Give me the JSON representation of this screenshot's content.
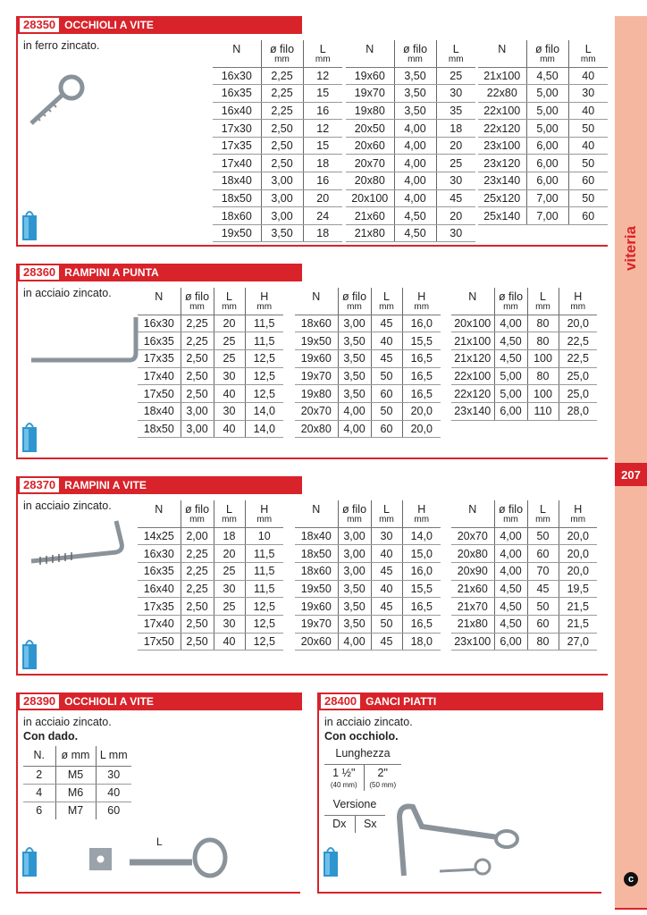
{
  "sidebar": {
    "category": "viteria",
    "page_number": "207",
    "colors": {
      "accent": "#d8232a",
      "sidebar": "#f6b7a0"
    }
  },
  "sections": [
    {
      "code": "28350",
      "title": "OCCHIOLI A VITE",
      "desc": "in ferro zincato.",
      "groups": [
        {
          "headers": [
            {
              "t": "N",
              "u": ""
            },
            {
              "t": "ø filo",
              "u": "mm"
            },
            {
              "t": "L",
              "u": "mm"
            }
          ],
          "rows": [
            [
              "16x30",
              "2,25",
              "12"
            ],
            [
              "16x35",
              "2,25",
              "15"
            ],
            [
              "16x40",
              "2,25",
              "16"
            ],
            [
              "17x30",
              "2,50",
              "12"
            ],
            [
              "17x35",
              "2,50",
              "15"
            ],
            [
              "17x40",
              "2,50",
              "18"
            ],
            [
              "18x40",
              "3,00",
              "16"
            ],
            [
              "18x50",
              "3,00",
              "20"
            ],
            [
              "18x60",
              "3,00",
              "24"
            ],
            [
              "19x50",
              "3,50",
              "18"
            ]
          ]
        },
        {
          "headers": [
            {
              "t": "N",
              "u": ""
            },
            {
              "t": "ø filo",
              "u": "mm"
            },
            {
              "t": "L",
              "u": "mm"
            }
          ],
          "rows": [
            [
              "19x60",
              "3,50",
              "25"
            ],
            [
              "19x70",
              "3,50",
              "30"
            ],
            [
              "19x80",
              "3,50",
              "35"
            ],
            [
              "20x50",
              "4,00",
              "18"
            ],
            [
              "20x60",
              "4,00",
              "20"
            ],
            [
              "20x70",
              "4,00",
              "25"
            ],
            [
              "20x80",
              "4,00",
              "30"
            ],
            [
              "20x100",
              "4,00",
              "45"
            ],
            [
              "21x60",
              "4,50",
              "20"
            ],
            [
              "21x80",
              "4,50",
              "30"
            ]
          ]
        },
        {
          "headers": [
            {
              "t": "N",
              "u": ""
            },
            {
              "t": "ø filo",
              "u": "mm"
            },
            {
              "t": "L",
              "u": "mm"
            }
          ],
          "rows": [
            [
              "21x100",
              "4,50",
              "40"
            ],
            [
              "22x80",
              "5,00",
              "30"
            ],
            [
              "22x100",
              "5,00",
              "40"
            ],
            [
              "22x120",
              "5,00",
              "50"
            ],
            [
              "23x100",
              "6,00",
              "40"
            ],
            [
              "23x120",
              "6,00",
              "50"
            ],
            [
              "23x140",
              "6,00",
              "60"
            ],
            [
              "25x120",
              "7,00",
              "50"
            ],
            [
              "25x140",
              "7,00",
              "60"
            ]
          ]
        }
      ]
    },
    {
      "code": "28360",
      "title": "RAMPINI A PUNTA",
      "desc": "in acciaio zincato.",
      "groups": [
        {
          "headers": [
            {
              "t": "N",
              "u": ""
            },
            {
              "t": "ø filo",
              "u": "mm"
            },
            {
              "t": "L",
              "u": "mm"
            },
            {
              "t": "H",
              "u": "mm"
            }
          ],
          "rows": [
            [
              "16x30",
              "2,25",
              "20",
              "11,5"
            ],
            [
              "16x35",
              "2,25",
              "25",
              "11,5"
            ],
            [
              "17x35",
              "2,50",
              "25",
              "12,5"
            ],
            [
              "17x40",
              "2,50",
              "30",
              "12,5"
            ],
            [
              "17x50",
              "2,50",
              "40",
              "12,5"
            ],
            [
              "18x40",
              "3,00",
              "30",
              "14,0"
            ],
            [
              "18x50",
              "3,00",
              "40",
              "14,0"
            ]
          ]
        },
        {
          "headers": [
            {
              "t": "N",
              "u": ""
            },
            {
              "t": "ø filo",
              "u": "mm"
            },
            {
              "t": "L",
              "u": "mm"
            },
            {
              "t": "H",
              "u": "mm"
            }
          ],
          "rows": [
            [
              "18x60",
              "3,00",
              "45",
              "16,0"
            ],
            [
              "19x50",
              "3,50",
              "40",
              "15,5"
            ],
            [
              "19x60",
              "3,50",
              "45",
              "16,5"
            ],
            [
              "19x70",
              "3,50",
              "50",
              "16,5"
            ],
            [
              "19x80",
              "3,50",
              "60",
              "16,5"
            ],
            [
              "20x70",
              "4,00",
              "50",
              "20,0"
            ],
            [
              "20x80",
              "4,00",
              "60",
              "20,0"
            ]
          ]
        },
        {
          "headers": [
            {
              "t": "N",
              "u": ""
            },
            {
              "t": "ø filo",
              "u": "mm"
            },
            {
              "t": "L",
              "u": "mm"
            },
            {
              "t": "H",
              "u": "mm"
            }
          ],
          "rows": [
            [
              "20x100",
              "4,00",
              "80",
              "20,0"
            ],
            [
              "21x100",
              "4,50",
              "80",
              "22,5"
            ],
            [
              "21x120",
              "4,50",
              "100",
              "22,5"
            ],
            [
              "22x100",
              "5,00",
              "80",
              "25,0"
            ],
            [
              "22x120",
              "5,00",
              "100",
              "25,0"
            ],
            [
              "23x140",
              "6,00",
              "110",
              "28,0"
            ]
          ]
        }
      ]
    },
    {
      "code": "28370",
      "title": "RAMPINI A VITE",
      "desc": "in acciaio zincato.",
      "groups": [
        {
          "headers": [
            {
              "t": "N",
              "u": ""
            },
            {
              "t": "ø filo",
              "u": "mm"
            },
            {
              "t": "L",
              "u": "mm"
            },
            {
              "t": "H",
              "u": "mm"
            }
          ],
          "rows": [
            [
              "14x25",
              "2,00",
              "18",
              "10"
            ],
            [
              "16x30",
              "2,25",
              "20",
              "11,5"
            ],
            [
              "16x35",
              "2,25",
              "25",
              "11,5"
            ],
            [
              "16x40",
              "2,25",
              "30",
              "11,5"
            ],
            [
              "17x35",
              "2,50",
              "25",
              "12,5"
            ],
            [
              "17x40",
              "2,50",
              "30",
              "12,5"
            ],
            [
              "17x50",
              "2,50",
              "40",
              "12,5"
            ]
          ]
        },
        {
          "headers": [
            {
              "t": "N",
              "u": ""
            },
            {
              "t": "ø filo",
              "u": "mm"
            },
            {
              "t": "L",
              "u": "mm"
            },
            {
              "t": "H",
              "u": "mm"
            }
          ],
          "rows": [
            [
              "18x40",
              "3,00",
              "30",
              "14,0"
            ],
            [
              "18x50",
              "3,00",
              "40",
              "15,0"
            ],
            [
              "18x60",
              "3,00",
              "45",
              "16,0"
            ],
            [
              "19x50",
              "3,50",
              "40",
              "15,5"
            ],
            [
              "19x60",
              "3,50",
              "45",
              "16,5"
            ],
            [
              "19x70",
              "3,50",
              "50",
              "16,5"
            ],
            [
              "20x60",
              "4,00",
              "45",
              "18,0"
            ]
          ]
        },
        {
          "headers": [
            {
              "t": "N",
              "u": ""
            },
            {
              "t": "ø filo",
              "u": "mm"
            },
            {
              "t": "L",
              "u": "mm"
            },
            {
              "t": "H",
              "u": "mm"
            }
          ],
          "rows": [
            [
              "20x70",
              "4,00",
              "50",
              "20,0"
            ],
            [
              "20x80",
              "4,00",
              "60",
              "20,0"
            ],
            [
              "20x90",
              "4,00",
              "70",
              "20,0"
            ],
            [
              "21x60",
              "4,50",
              "45",
              "19,5"
            ],
            [
              "21x70",
              "4,50",
              "50",
              "21,5"
            ],
            [
              "21x80",
              "4,50",
              "60",
              "21,5"
            ],
            [
              "23x100",
              "6,00",
              "80",
              "27,0"
            ]
          ]
        }
      ]
    },
    {
      "code": "28390",
      "title": "OCCHIOLI A VITE",
      "desc": "in acciaio zincato.",
      "desc_bold": "Con dado.",
      "groups": [
        {
          "headers": [
            {
              "t": "N.",
              "u": ""
            },
            {
              "t": "ø mm",
              "u": ""
            },
            {
              "t": "L mm",
              "u": ""
            }
          ],
          "rows": [
            [
              "2",
              "M5",
              "30"
            ],
            [
              "4",
              "M6",
              "40"
            ],
            [
              "6",
              "M7",
              "60"
            ]
          ]
        }
      ],
      "image_label": "L"
    },
    {
      "code": "28400",
      "title": "GANCI PIATTI",
      "desc": "in acciaio zincato.",
      "desc_bold": "Con occhiolo.",
      "groups": [
        {
          "headers": [
            {
              "t": "Lunghezza",
              "u": ""
            }
          ],
          "rows": [
            [
              "1 ½\"",
              "(40 mm)",
              "2\"",
              "(50 mm)"
            ]
          ]
        },
        {
          "headers": [
            {
              "t": "Versione",
              "u": ""
            }
          ],
          "rows": [
            [
              "Dx",
              "Sx"
            ]
          ]
        }
      ]
    }
  ]
}
